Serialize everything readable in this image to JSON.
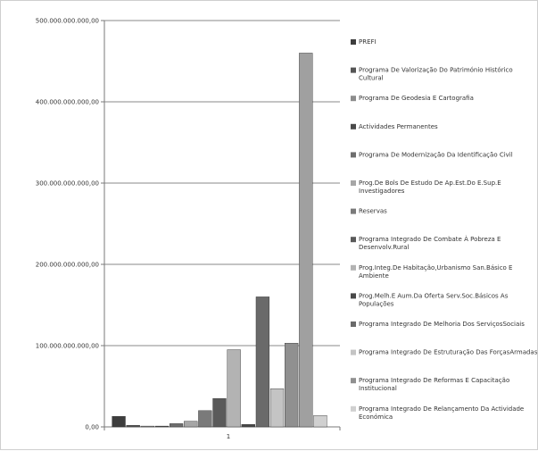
{
  "chart_data": {
    "type": "bar",
    "categories": [
      "1"
    ],
    "ylim": [
      0,
      500000000000
    ],
    "y_ticks": [
      "0,00",
      "100.000.000.000,00",
      "200.000.000.000,00",
      "300.000.000.000,00",
      "400.000.000.000,00",
      "500.000.000.000,00"
    ],
    "grid": true,
    "legend_position": "right",
    "series": [
      {
        "name": "PREFI",
        "values": [
          13000000000
        ],
        "color": "#3d3d3d"
      },
      {
        "name": "Programa De Valorização Do Património Histórico Cultural",
        "values": [
          2000000000
        ],
        "color": "#555555"
      },
      {
        "name": "Programa De Geodesia E Cartografia",
        "values": [
          1000000000
        ],
        "color": "#8c8c8c"
      },
      {
        "name": "Actividades Permanentes",
        "values": [
          1000000000
        ],
        "color": "#4a4a4a"
      },
      {
        "name": "Programa De Modernização Da Identificação Civil",
        "values": [
          4000000000
        ],
        "color": "#6e6e6e"
      },
      {
        "name": "Prog.De Bols De Estudo De Ap.Est.Do E.Sup.E Investigadores",
        "values": [
          7000000000
        ],
        "color": "#a6a6a6"
      },
      {
        "name": "Reservas",
        "values": [
          20000000000
        ],
        "color": "#7a7a7a"
      },
      {
        "name": "Programa Integrado De Combate À Pobreza E Desenvolv.Rural",
        "values": [
          35000000000
        ],
        "color": "#5a5a5a"
      },
      {
        "name": "Prog.Integ.De Habitação,Urbanismo San.Básico E Ambiente",
        "values": [
          95000000000
        ],
        "color": "#b3b3b3"
      },
      {
        "name": "Prog.Melh.E Aum.Da Oferta Serv.Soc.Básicos As Populações",
        "values": [
          3000000000
        ],
        "color": "#484848"
      },
      {
        "name": "Programa Integrado De Melhoria Dos ServiçosSociais",
        "values": [
          160000000000
        ],
        "color": "#6a6a6a"
      },
      {
        "name": "Programa Integrado De Estruturação Das ForçasArmadas",
        "values": [
          47000000000
        ],
        "color": "#c4c4c4"
      },
      {
        "name": "Programa Integrado De Reformas E Capacitação Institucional",
        "values": [
          103000000000
        ],
        "color": "#909090"
      },
      {
        "name": "",
        "values": [
          460000000000
        ],
        "color": "#a0a0a0"
      },
      {
        "name": "Programa Integrado De Relançamento Da Actividade Económica",
        "values": [
          14000000000
        ],
        "color": "#d0d0d0"
      }
    ]
  }
}
